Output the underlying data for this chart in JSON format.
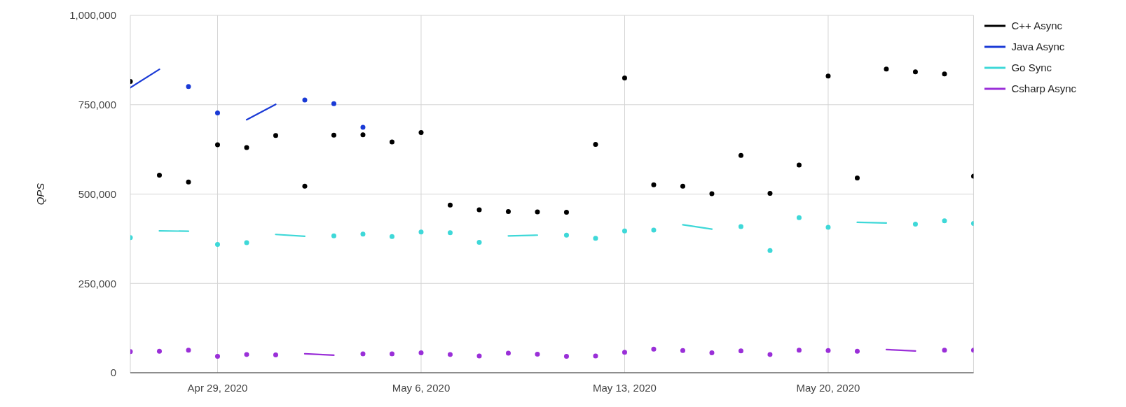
{
  "chart_data": {
    "type": "line",
    "ylabel": "QPS",
    "xlim": [
      "2020-04-26",
      "2020-05-25"
    ],
    "xticks": [
      {
        "value": "2020-04-29",
        "label": "Apr 29, 2020"
      },
      {
        "value": "2020-05-06",
        "label": "May 6, 2020"
      },
      {
        "value": "2020-05-13",
        "label": "May 13, 2020"
      },
      {
        "value": "2020-05-20",
        "label": "May 20, 2020"
      }
    ],
    "ylim": [
      0,
      1000000
    ],
    "yticks": [
      0,
      {
        "value": 250000,
        "label": "250,000"
      },
      {
        "value": 500000,
        "label": "500,000"
      },
      {
        "value": 750000,
        "label": "750,000"
      },
      {
        "value": 1000000,
        "label": "1,000,000"
      }
    ],
    "grid": true,
    "legend": "top right",
    "marker": "circle",
    "line_style": "solid",
    "series": [
      {
        "name": "C++ Async",
        "type": "scatter",
        "color": "#000000",
        "x": [
          "2020-04-26",
          "2020-04-27",
          "2020-04-28",
          "2020-04-29",
          "2020-04-30",
          "2020-05-01",
          "2020-05-02",
          "2020-05-03",
          "2020-05-04",
          "2020-05-05",
          "2020-05-06",
          "2020-05-07",
          "2020-05-08",
          "2020-05-09",
          "2020-05-10",
          "2020-05-11",
          "2020-05-12",
          "2020-05-13",
          "2020-05-14",
          "2020-05-15",
          "2020-05-16",
          "2020-05-17",
          "2020-05-18",
          "2020-05-19",
          "2020-05-20",
          "2020-05-21",
          "2020-05-22",
          "2020-05-23",
          "2020-05-24",
          "2020-05-25"
        ],
        "values": [
          815000,
          553000,
          534000,
          638000,
          630000,
          664000,
          522000,
          665000,
          666000,
          646000,
          672000,
          469000,
          456000,
          451000,
          450000,
          449000,
          639000,
          825000,
          526000,
          522000,
          501000,
          608000,
          502000,
          581000,
          830000,
          545000,
          850000,
          842000,
          836000,
          550000
        ]
      },
      {
        "name": "Java Async",
        "color": "#1a3ad6",
        "x": [
          "2020-04-26",
          "2020-04-27",
          "2020-04-27T12:00",
          "2020-04-28",
          "2020-04-28T12:00",
          "2020-04-29",
          "2020-04-29T12:00",
          "2020-04-30",
          "2020-05-01",
          "2020-05-01T12:00",
          "2020-05-02",
          "2020-05-02T12:00",
          "2020-05-03",
          "2020-05-03T12:00",
          "2020-05-04"
        ],
        "values": [
          798000,
          849000,
          null,
          801000,
          null,
          727000,
          null,
          708000,
          751000,
          null,
          763000,
          null,
          753000,
          null,
          687000
        ]
      },
      {
        "name": "Go Sync",
        "color": "#3ed8d8",
        "x": [
          "2020-04-26",
          "2020-04-26T12:00",
          "2020-04-27",
          "2020-04-28",
          "2020-04-28T12:00",
          "2020-04-29",
          "2020-04-29T12:00",
          "2020-04-30",
          "2020-04-30T12:00",
          "2020-05-01",
          "2020-05-02",
          "2020-05-02T12:00",
          "2020-05-03",
          "2020-05-03T12:00",
          "2020-05-04",
          "2020-05-04T12:00",
          "2020-05-05",
          "2020-05-05T12:00",
          "2020-05-06",
          "2020-05-06T12:00",
          "2020-05-07",
          "2020-05-07T12:00",
          "2020-05-08",
          "2020-05-08T12:00",
          "2020-05-09",
          "2020-05-10",
          "2020-05-10T12:00",
          "2020-05-11",
          "2020-05-11T12:00",
          "2020-05-12",
          "2020-05-12T12:00",
          "2020-05-13",
          "2020-05-13T12:00",
          "2020-05-14",
          "2020-05-14T12:00",
          "2020-05-15",
          "2020-05-16",
          "2020-05-16T12:00",
          "2020-05-17",
          "2020-05-17T12:00",
          "2020-05-18",
          "2020-05-18T12:00",
          "2020-05-19",
          "2020-05-19T12:00",
          "2020-05-20",
          "2020-05-20T12:00",
          "2020-05-21",
          "2020-05-22",
          "2020-05-22T12:00",
          "2020-05-23",
          "2020-05-23T12:00",
          "2020-05-24",
          "2020-05-24T12:00",
          "2020-05-25"
        ],
        "values": [
          378000,
          null,
          397000,
          396000,
          null,
          359000,
          null,
          364000,
          null,
          387000,
          382000,
          null,
          383000,
          null,
          388000,
          null,
          381000,
          null,
          394000,
          null,
          392000,
          null,
          365000,
          null,
          383000,
          385000,
          null,
          385000,
          null,
          376000,
          null,
          397000,
          null,
          399000,
          null,
          414000,
          402000,
          null,
          409000,
          null,
          342000,
          null,
          434000,
          null,
          407000,
          null,
          421000,
          419000,
          null,
          416000,
          null,
          425000,
          null,
          418000
        ]
      },
      {
        "name": "Csharp Async",
        "color": "#9a2fd8",
        "x": [
          "2020-04-26",
          "2020-04-26T12:00",
          "2020-04-27",
          "2020-04-27T12:00",
          "2020-04-28",
          "2020-04-28T12:00",
          "2020-04-29",
          "2020-04-29T12:00",
          "2020-04-30",
          "2020-04-30T12:00",
          "2020-05-01",
          "2020-05-01T12:00",
          "2020-05-02",
          "2020-05-03",
          "2020-05-03T12:00",
          "2020-05-04",
          "2020-05-04T12:00",
          "2020-05-05",
          "2020-05-05T12:00",
          "2020-05-06",
          "2020-05-06T12:00",
          "2020-05-07",
          "2020-05-07T12:00",
          "2020-05-08",
          "2020-05-08T12:00",
          "2020-05-09",
          "2020-05-09T12:00",
          "2020-05-10",
          "2020-05-10T12:00",
          "2020-05-11",
          "2020-05-11T12:00",
          "2020-05-12",
          "2020-05-12T12:00",
          "2020-05-13",
          "2020-05-13T12:00",
          "2020-05-14",
          "2020-05-14T12:00",
          "2020-05-15",
          "2020-05-15T12:00",
          "2020-05-16",
          "2020-05-16T12:00",
          "2020-05-17",
          "2020-05-17T12:00",
          "2020-05-18",
          "2020-05-18T12:00",
          "2020-05-19",
          "2020-05-19T12:00",
          "2020-05-20",
          "2020-05-20T12:00",
          "2020-05-21",
          "2020-05-21T12:00",
          "2020-05-22",
          "2020-05-23",
          "2020-05-23T12:00",
          "2020-05-24",
          "2020-05-24T12:00",
          "2020-05-25"
        ],
        "values": [
          59000,
          null,
          60000,
          null,
          63000,
          null,
          46000,
          null,
          51000,
          null,
          50000,
          null,
          53000,
          49000,
          null,
          53000,
          null,
          53000,
          null,
          56000,
          null,
          51000,
          null,
          47000,
          null,
          55000,
          null,
          52000,
          null,
          46000,
          null,
          47000,
          null,
          57000,
          null,
          66000,
          null,
          62000,
          null,
          56000,
          null,
          61000,
          null,
          51000,
          null,
          63000,
          null,
          62000,
          null,
          60000,
          null,
          65000,
          61000,
          null,
          63000,
          null,
          63000
        ]
      }
    ]
  }
}
